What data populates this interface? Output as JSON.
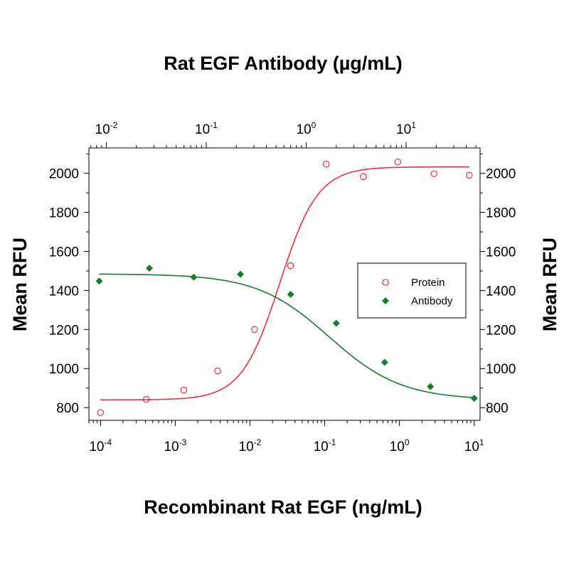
{
  "chart_data": {
    "type": "scatter",
    "title": "",
    "xlabel": "Recombinant Rat EGF (ng/mL)",
    "x2label": "Rat EGF Antibody (µg/mL)",
    "ylabel": "Mean RFU",
    "y2label": "Mean RFU",
    "x_scale": "log",
    "xlim": [
      7e-05,
      12
    ],
    "x2_scale": "log",
    "x2lim": [
      0.0067,
      55
    ],
    "ylim": [
      735,
      2130
    ],
    "x_ticks": [
      0.0001,
      0.001,
      0.01,
      0.1,
      1,
      10
    ],
    "x_tick_labels": [
      {
        "base": "10",
        "exp": "-4"
      },
      {
        "base": "10",
        "exp": "-3"
      },
      {
        "base": "10",
        "exp": "-2"
      },
      {
        "base": "10",
        "exp": "-1"
      },
      {
        "base": "10",
        "exp": "0"
      },
      {
        "base": "10",
        "exp": "1"
      }
    ],
    "x2_ticks": [
      0.01,
      0.1,
      1,
      10
    ],
    "x2_tick_labels": [
      {
        "base": "10",
        "exp": "-2"
      },
      {
        "base": "10",
        "exp": "-1"
      },
      {
        "base": "10",
        "exp": "0"
      },
      {
        "base": "10",
        "exp": "1"
      }
    ],
    "y_ticks": [
      800,
      1000,
      1200,
      1400,
      1600,
      1800,
      2000
    ],
    "y_tick_labels": [
      "800",
      "1000",
      "1200",
      "1400",
      "1600",
      "1800",
      "2000"
    ],
    "grid": false,
    "legend_position": "right",
    "series": [
      {
        "name": "Protein",
        "axis": "bottom",
        "marker": "open-circle",
        "color": "#e8303f",
        "x": [
          0.0001,
          0.00041,
          0.0013,
          0.0037,
          0.0115,
          0.035,
          0.105,
          0.33,
          0.95,
          2.9,
          8.6
        ],
        "y": [
          775,
          842,
          890,
          988,
          1200,
          1527,
          2047,
          1983,
          2058,
          1998,
          1990
        ],
        "fit": {
          "bottom": 840,
          "top": 2033,
          "ec50": 0.025,
          "hill": 1.7,
          "x_range": [
            0.0001,
            8.6
          ]
        }
      },
      {
        "name": "Antibody",
        "axis": "top",
        "marker": "filled-diamond",
        "color": "#1a7a2e",
        "x": [
          0.0085,
          0.027,
          0.075,
          0.22,
          0.7,
          2.0,
          6.1,
          17.5,
          48
        ],
        "y": [
          1448,
          1514,
          1468,
          1483,
          1380,
          1232,
          1032,
          908,
          848
        ],
        "fit": {
          "bottom": 840,
          "top": 1485,
          "ec50": 1.7,
          "hill": 1.2,
          "x_range": [
            0.0085,
            48
          ]
        }
      }
    ]
  }
}
